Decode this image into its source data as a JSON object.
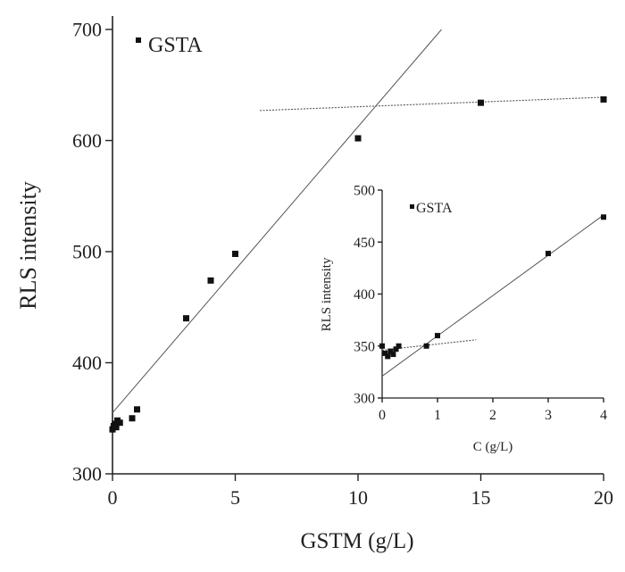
{
  "chart_data": [
    {
      "type": "scatter",
      "xlabel": "GSTM (g/L)",
      "ylabel": "RLS intensity",
      "xlim": [
        0,
        20
      ],
      "ylim": [
        300,
        700
      ],
      "xticks": [
        "0",
        "5",
        "10",
        "15",
        "20"
      ],
      "yticks": [
        "300",
        "400",
        "500",
        "600",
        "700"
      ],
      "legend": {
        "label": "GSTA",
        "placement": "top-left"
      },
      "series": [
        {
          "points": [
            {
              "x": 0.0,
              "y": 340
            },
            {
              "x": 0.05,
              "y": 343
            },
            {
              "x": 0.1,
              "y": 345
            },
            {
              "x": 0.15,
              "y": 342
            },
            {
              "x": 0.2,
              "y": 348
            },
            {
              "x": 0.3,
              "y": 346
            },
            {
              "x": 0.8,
              "y": 350
            },
            {
              "x": 1.0,
              "y": 358
            },
            {
              "x": 3.0,
              "y": 440
            },
            {
              "x": 4.0,
              "y": 474
            },
            {
              "x": 5.0,
              "y": 498
            },
            {
              "x": 10.0,
              "y": 602
            },
            {
              "x": 15.0,
              "y": 634
            },
            {
              "x": 20.0,
              "y": 637
            }
          ]
        }
      ],
      "fit_lines": [
        {
          "style": "solid",
          "from": {
            "x": 0,
            "y": 355
          },
          "to": {
            "x": 13.4,
            "y": 700
          }
        },
        {
          "style": "dotted",
          "from": {
            "x": 6,
            "y": 627
          },
          "to": {
            "x": 20,
            "y": 639
          }
        }
      ]
    },
    {
      "type": "scatter",
      "xlabel": "C (g/L)",
      "ylabel": "RLS intensity",
      "xlim": [
        0,
        4
      ],
      "ylim": [
        300,
        500
      ],
      "xticks": [
        "0",
        "1",
        "2",
        "3",
        "4"
      ],
      "yticks": [
        "300",
        "350",
        "400",
        "450",
        "500"
      ],
      "legend": {
        "label": "GSTA",
        "placement": "top-left"
      },
      "series": [
        {
          "points": [
            {
              "x": 0.0,
              "y": 350
            },
            {
              "x": 0.05,
              "y": 343
            },
            {
              "x": 0.1,
              "y": 340
            },
            {
              "x": 0.15,
              "y": 345
            },
            {
              "x": 0.2,
              "y": 342
            },
            {
              "x": 0.25,
              "y": 347
            },
            {
              "x": 0.3,
              "y": 350
            },
            {
              "x": 0.8,
              "y": 350
            },
            {
              "x": 1.0,
              "y": 360
            },
            {
              "x": 3.0,
              "y": 439
            },
            {
              "x": 4.0,
              "y": 474
            }
          ]
        }
      ],
      "fit_lines": [
        {
          "style": "solid",
          "from": {
            "x": 0,
            "y": 321
          },
          "to": {
            "x": 4,
            "y": 476
          }
        },
        {
          "style": "dotted",
          "from": {
            "x": 0,
            "y": 346
          },
          "to": {
            "x": 1.7,
            "y": 356
          }
        }
      ]
    }
  ]
}
